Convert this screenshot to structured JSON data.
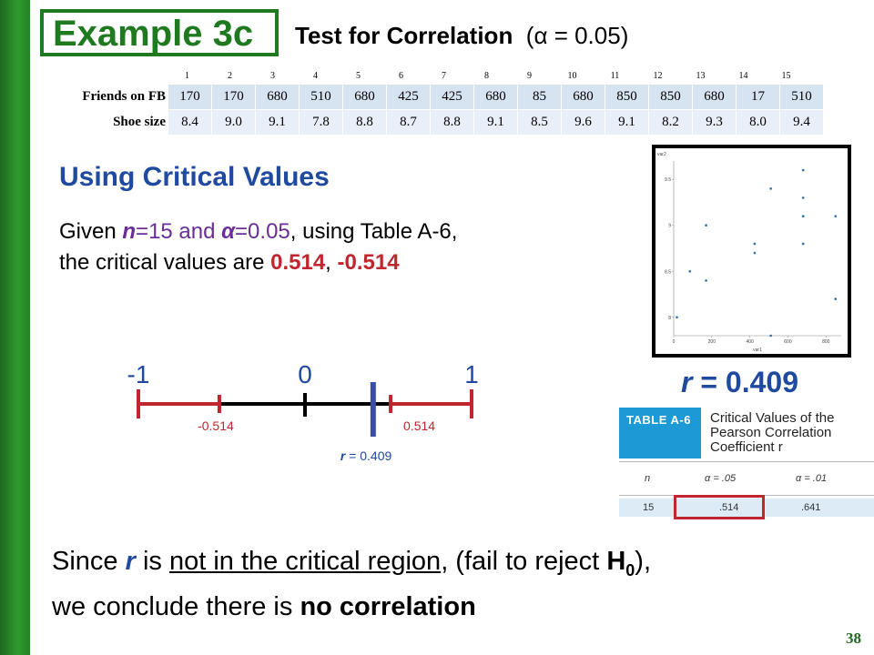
{
  "title": "Example 3c",
  "subtitle": {
    "bold": "Test for Correlation",
    "rest": "(α = 0.05)"
  },
  "table": {
    "indices": [
      "1",
      "2",
      "3",
      "4",
      "5",
      "6",
      "7",
      "8",
      "9",
      "10",
      "11",
      "12",
      "13",
      "14",
      "15"
    ],
    "rows": [
      {
        "label": "Friends on FB",
        "values": [
          "170",
          "170",
          "680",
          "510",
          "680",
          "425",
          "425",
          "680",
          "85",
          "680",
          "850",
          "850",
          "680",
          "17",
          "510"
        ]
      },
      {
        "label": "Shoe size",
        "values": [
          "8.4",
          "9.0",
          "9.1",
          "7.8",
          "8.8",
          "8.7",
          "8.8",
          "9.1",
          "8.5",
          "9.6",
          "9.1",
          "8.2",
          "9.3",
          "8.0",
          "9.4"
        ]
      }
    ]
  },
  "section_heading": "Using Critical Values",
  "given": {
    "p1": "Given ",
    "n_var": "n",
    "p2": "=15 and ",
    "alpha_var": "α",
    "p3": "=0.05",
    "p4": ", using Table A-6,",
    "p5": "the critical values are ",
    "cv_pos": "0.514",
    "sep": ", ",
    "cv_neg": "-0.514"
  },
  "scatter": {
    "y_axis_title": "var2",
    "x_axis_title": "var1",
    "x_ticks": [
      "0",
      "200",
      "400",
      "600",
      "800"
    ],
    "y_ticks": [
      "8",
      "8.5",
      "9",
      "9.5"
    ]
  },
  "numberline": {
    "label_minus1": "-1",
    "label_0": "0",
    "label_1": "1",
    "cv_neg_label": "-0.514",
    "cv_pos_label": "0.514",
    "r_var": "r",
    "r_value_label": " = 0.409",
    "r_value": 0.409,
    "critical_value": 0.514
  },
  "r_result": {
    "var": "r",
    "rest": " = 0.409"
  },
  "table_a6": {
    "tag": "TABLE A-6",
    "description": "Critical Values of the Pearson Correlation Coefficient r",
    "col_n": "n",
    "col_a05": "α = .05",
    "col_a01": "α = .01",
    "row_n": "15",
    "row_a05": ".514",
    "row_a01": ".641"
  },
  "conclusion": {
    "l1a": "Since ",
    "r": "r",
    "l1b": " is ",
    "underlined": "not in the critical region",
    "l1c": ", (fail to reject ",
    "h": "H",
    "h_sub": "0",
    "l1d": "),",
    "l2a": "we conclude there is ",
    "l2b": "no correlation"
  },
  "page_number": "38",
  "colors": {
    "green": "#1f7a1f",
    "blue": "#1f4aa0",
    "red": "#c0262d",
    "purple": "#6a2d9a",
    "table_cell": "#d6e3f1"
  },
  "chart_data": {
    "type": "scatter",
    "x": [
      170,
      170,
      680,
      510,
      680,
      425,
      425,
      680,
      85,
      680,
      850,
      850,
      680,
      17,
      510
    ],
    "y": [
      8.4,
      9.0,
      9.1,
      7.8,
      8.8,
      8.7,
      8.8,
      9.1,
      8.5,
      9.6,
      9.1,
      8.2,
      9.3,
      8.0,
      9.4
    ],
    "xlabel": "var1",
    "ylabel": "var2",
    "xlim": [
      0,
      880
    ],
    "ylim": [
      7.8,
      9.7
    ],
    "grid": false
  }
}
